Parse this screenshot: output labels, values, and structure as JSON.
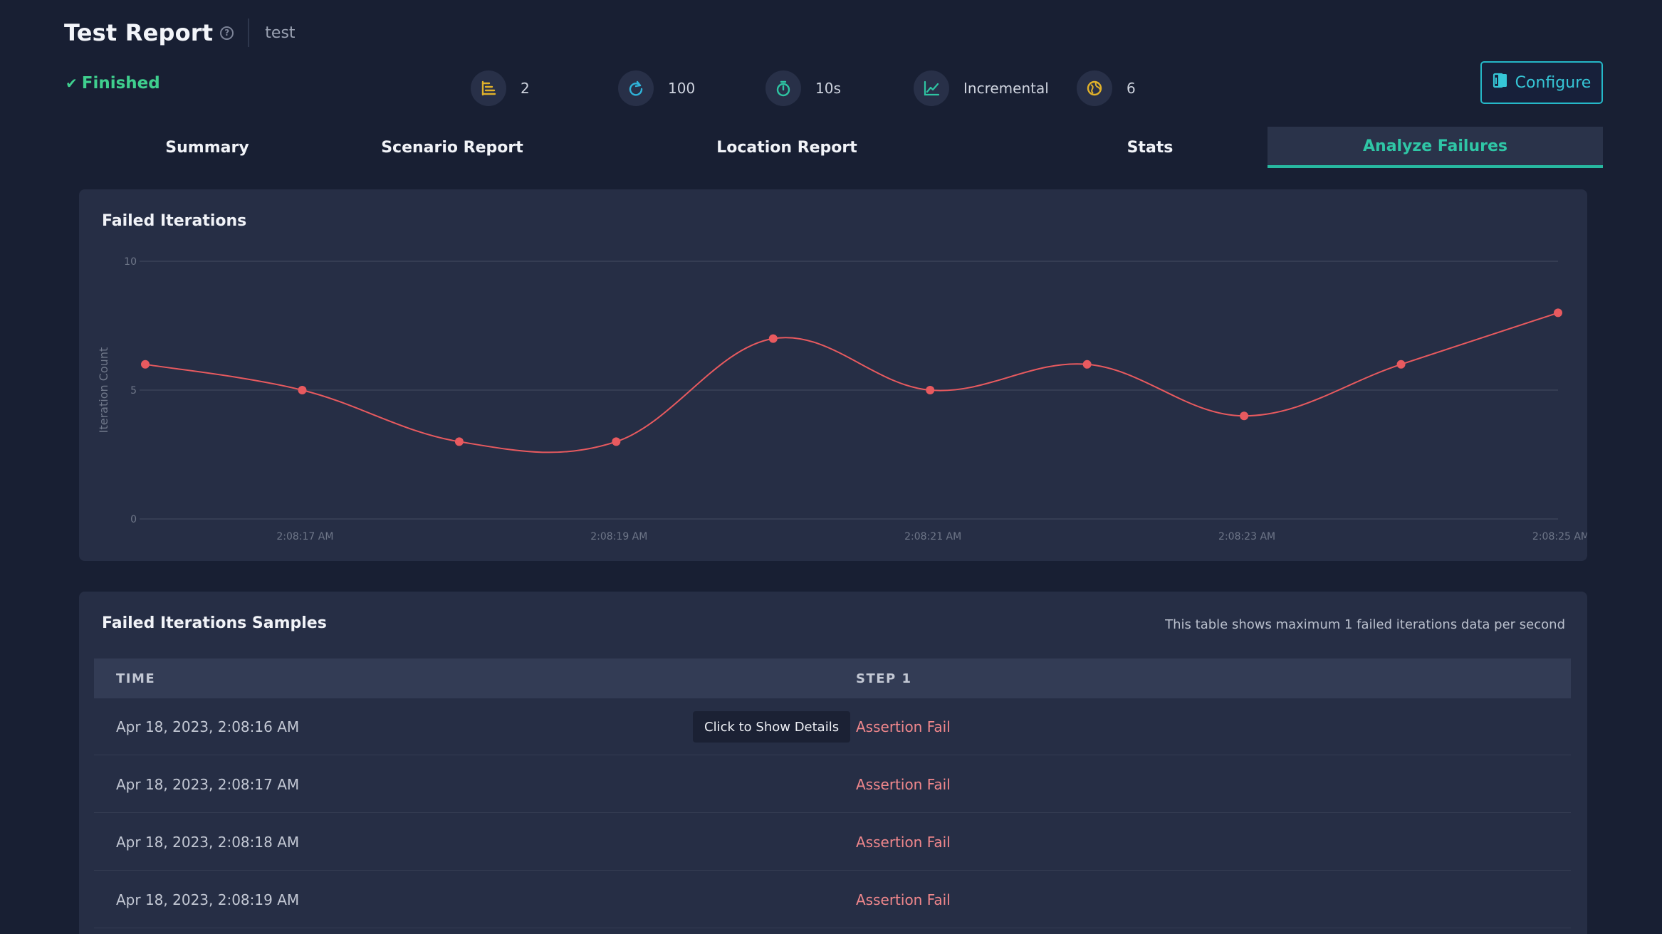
{
  "header": {
    "title": "Test Report",
    "subtitle": "test"
  },
  "status": {
    "label": "Finished",
    "color": "#3fcf8e"
  },
  "stats": [
    {
      "icon": "steps-icon",
      "value": "2",
      "color": "#e0b12a"
    },
    {
      "icon": "refresh-icon",
      "value": "100",
      "color": "#2fb3d9"
    },
    {
      "icon": "stopwatch-icon",
      "value": "10s",
      "color": "#2ec4a2"
    },
    {
      "icon": "trend-chart-icon",
      "value": "Incremental",
      "color": "#2ec4a2"
    },
    {
      "icon": "globe-icon",
      "value": "6",
      "color": "#e0b12a"
    }
  ],
  "configure_button": {
    "label": "Configure"
  },
  "tabs": [
    {
      "label": "Summary",
      "active": false
    },
    {
      "label": "Scenario Report",
      "active": false
    },
    {
      "label": "Location Report",
      "active": false
    },
    {
      "label": "Stats",
      "active": false
    },
    {
      "label": "Analyze Failures",
      "active": true
    }
  ],
  "failed_iterations_card": {
    "title": "Failed Iterations"
  },
  "chart_data": {
    "type": "line",
    "title": "Failed Iterations",
    "xlabel": "",
    "ylabel": "Iteration Count",
    "x": [
      "2:08:16 AM",
      "2:08:17 AM",
      "2:08:18 AM",
      "2:08:19 AM",
      "2:08:20 AM",
      "2:08:21 AM",
      "2:08:22 AM",
      "2:08:23 AM",
      "2:08:24 AM",
      "2:08:25 AM"
    ],
    "x_tick_labels": [
      "2:08:17 AM",
      "2:08:19 AM",
      "2:08:21 AM",
      "2:08:23 AM",
      "2:08:25 AM"
    ],
    "y_tick_labels": [
      "0",
      "5",
      "10"
    ],
    "series": [
      {
        "values": [
          6,
          5,
          3,
          3,
          7,
          5,
          6,
          4,
          6,
          8
        ]
      }
    ],
    "ylim": [
      0,
      10
    ],
    "grid": true,
    "line_color": "#e85a5f"
  },
  "samples_card": {
    "title": "Failed Iterations Samples",
    "note": "This table shows maximum 1 failed iterations data per second",
    "columns": [
      "TIME",
      "STEP 1"
    ],
    "rows": [
      {
        "time": "Apr 18, 2023, 2:08:16 AM",
        "step1": "Assertion Fail"
      },
      {
        "time": "Apr 18, 2023, 2:08:17 AM",
        "step1": "Assertion Fail"
      },
      {
        "time": "Apr 18, 2023, 2:08:18 AM",
        "step1": "Assertion Fail"
      },
      {
        "time": "Apr 18, 2023, 2:08:19 AM",
        "step1": "Assertion Fail"
      }
    ],
    "tooltip": "Click to Show Details"
  }
}
